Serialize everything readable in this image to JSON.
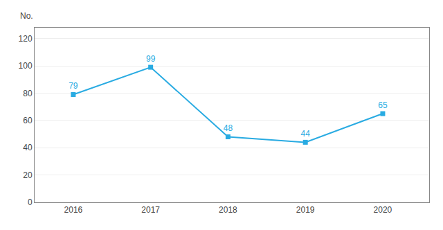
{
  "chart_data": {
    "type": "line",
    "ylabel": "No.",
    "x": [
      2016,
      2017,
      2018,
      2019,
      2020
    ],
    "series": [
      {
        "color": "#29ABE2",
        "marker": "square",
        "values": [
          79,
          99,
          48,
          44,
          65
        ]
      }
    ],
    "xlim": [
      2015.5,
      2020.6
    ],
    "xticks": [
      2016,
      2017,
      2018,
      2019,
      2020
    ],
    "ylim": [
      0,
      128
    ],
    "yticks": [
      0,
      20,
      40,
      60,
      80,
      100,
      120
    ],
    "grid": true,
    "data_labels": true
  }
}
